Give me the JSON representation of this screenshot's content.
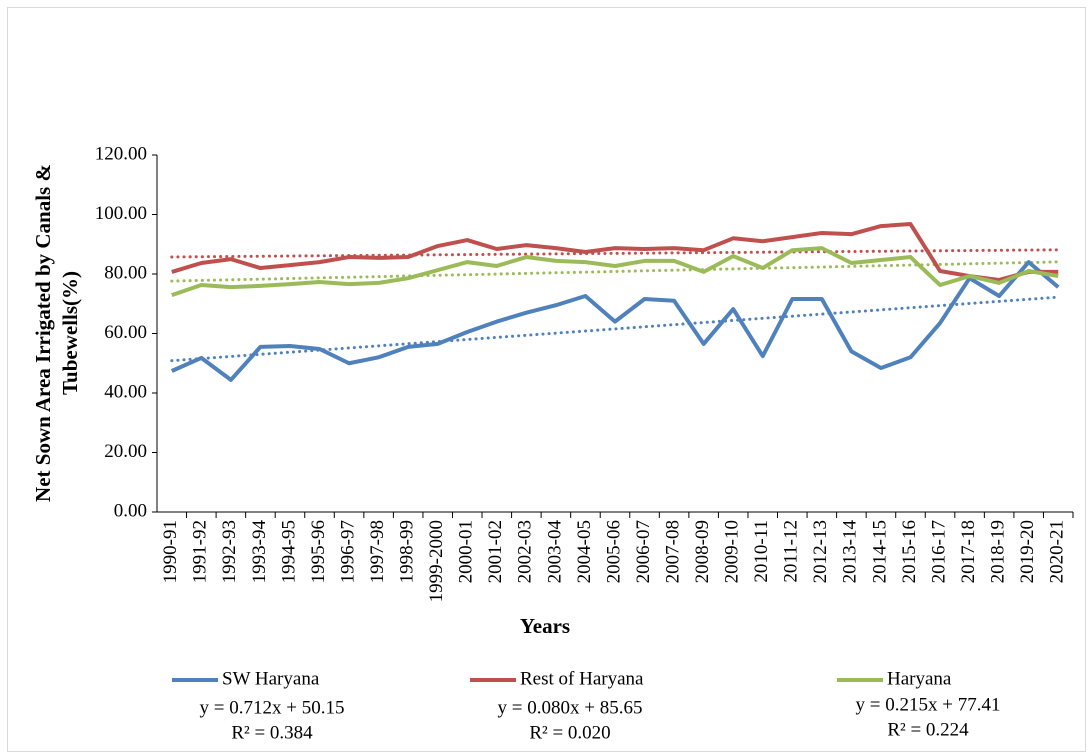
{
  "chart_data": {
    "type": "line",
    "xlabel": "Years",
    "ylabel": [
      "Net Sown Area Irrigated by Canals &",
      "Tubewells(%)"
    ],
    "categories": [
      "1990-91",
      "1991-92",
      "1992-93",
      "1993-94",
      "1994-95",
      "1995-96",
      "1996-97",
      "1997-98",
      "1998-99",
      "1999-2000",
      "2000-01",
      "2001-02",
      "2002-03",
      "2003-04",
      "2004-05",
      "2005-06",
      "2006-07",
      "2007-08",
      "2008-09",
      "2009-10",
      "2010-11",
      "2011-12",
      "2012-13",
      "2013-14",
      "2014-15",
      "2015-16",
      "2016-17",
      "2017-18",
      "2018-19",
      "2019-20",
      "2020-21"
    ],
    "ylim": [
      0,
      120
    ],
    "yticks": [
      {
        "value": 0,
        "label": "0.00"
      },
      {
        "value": 20,
        "label": "20.00"
      },
      {
        "value": 40,
        "label": "40.00"
      },
      {
        "value": 60,
        "label": "60.00"
      },
      {
        "value": 80,
        "label": "80.00"
      },
      {
        "value": 100,
        "label": "100.00"
      },
      {
        "value": 120,
        "label": "120.00"
      }
    ],
    "legend": "bottom",
    "series": [
      {
        "name": "SW Haryana",
        "color": "#4f81bd",
        "values": [
          47.4,
          51.8,
          44.4,
          55.5,
          55.8,
          54.8,
          50,
          52,
          55.5,
          56.5,
          60.5,
          64,
          67,
          69.5,
          72.6,
          64,
          71.6,
          71,
          56.5,
          68.2,
          52.4,
          71.6,
          71.6,
          54,
          48.4,
          52,
          63.5,
          78.6,
          72.6,
          84,
          75.6
        ],
        "trendline": {
          "slope": 0.712,
          "intercept": 50.15,
          "label": "y = 0.712x + 50.15",
          "r2_label": "R² = 0.384"
        }
      },
      {
        "name": "Rest of Haryana",
        "color": "#c0504d",
        "values": [
          80.7,
          83.7,
          85,
          82,
          83,
          84,
          85.7,
          85.4,
          85.7,
          89.4,
          91.4,
          88.4,
          89.7,
          88.7,
          87.4,
          88.7,
          88.4,
          88.7,
          88,
          92,
          91,
          92.4,
          93.8,
          93.4,
          96.1,
          96.8,
          81,
          79.3,
          78,
          80.7,
          80.7
        ],
        "trendline": {
          "slope": 0.08,
          "intercept": 85.65,
          "label": "y = 0.080x + 85.65",
          "r2_label": "R² = 0.020"
        }
      },
      {
        "name": "Haryana",
        "color": "#9bbb59",
        "values": [
          72.9,
          76.3,
          75.6,
          76,
          76.6,
          77.3,
          76.6,
          77,
          78.6,
          81.3,
          84,
          82.7,
          85.7,
          84.4,
          84,
          82.7,
          84.4,
          84.4,
          80.7,
          86,
          82,
          88,
          88.7,
          83.7,
          84.7,
          85.7,
          76.3,
          79.3,
          77,
          81,
          79.3
        ],
        "trendline": {
          "slope": 0.215,
          "intercept": 77.41,
          "label": "y = 0.215x + 77.41",
          "r2_label": "R² = 0.224"
        }
      }
    ]
  }
}
